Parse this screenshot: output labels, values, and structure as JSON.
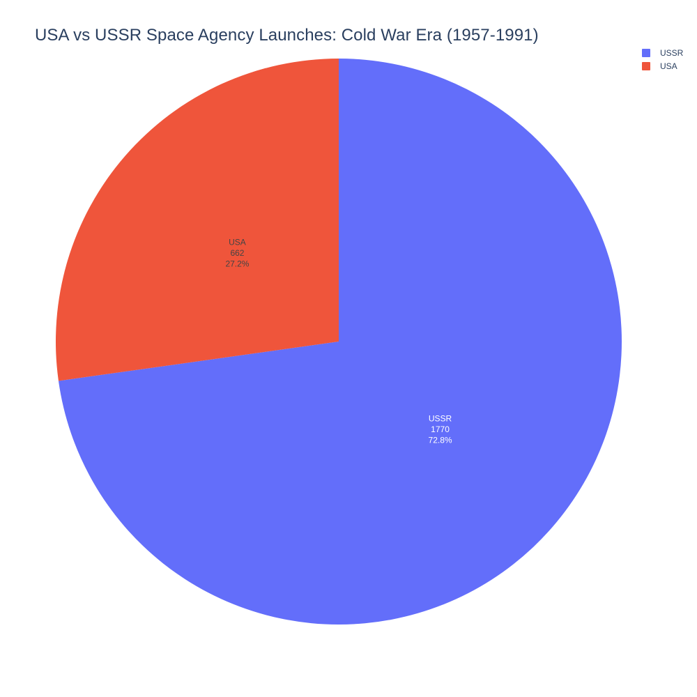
{
  "chart_data": {
    "type": "pie",
    "title": "USA vs USSR Space Agency Launches: Cold War Era (1957-1991)",
    "slices": [
      {
        "label": "USSR",
        "value": 1770,
        "percent": "72.8%",
        "color": "#636efa",
        "text_color": "#ffffff"
      },
      {
        "label": "USA",
        "value": 662,
        "percent": "27.2%",
        "color": "#ef553b",
        "text_color": "#444444"
      }
    ],
    "start_angle_deg": 0,
    "direction": "clockwise",
    "legend": {
      "position": "top-right",
      "entries": [
        {
          "label": "USSR",
          "color": "#636efa"
        },
        {
          "label": "USA",
          "color": "#ef553b"
        }
      ]
    }
  }
}
